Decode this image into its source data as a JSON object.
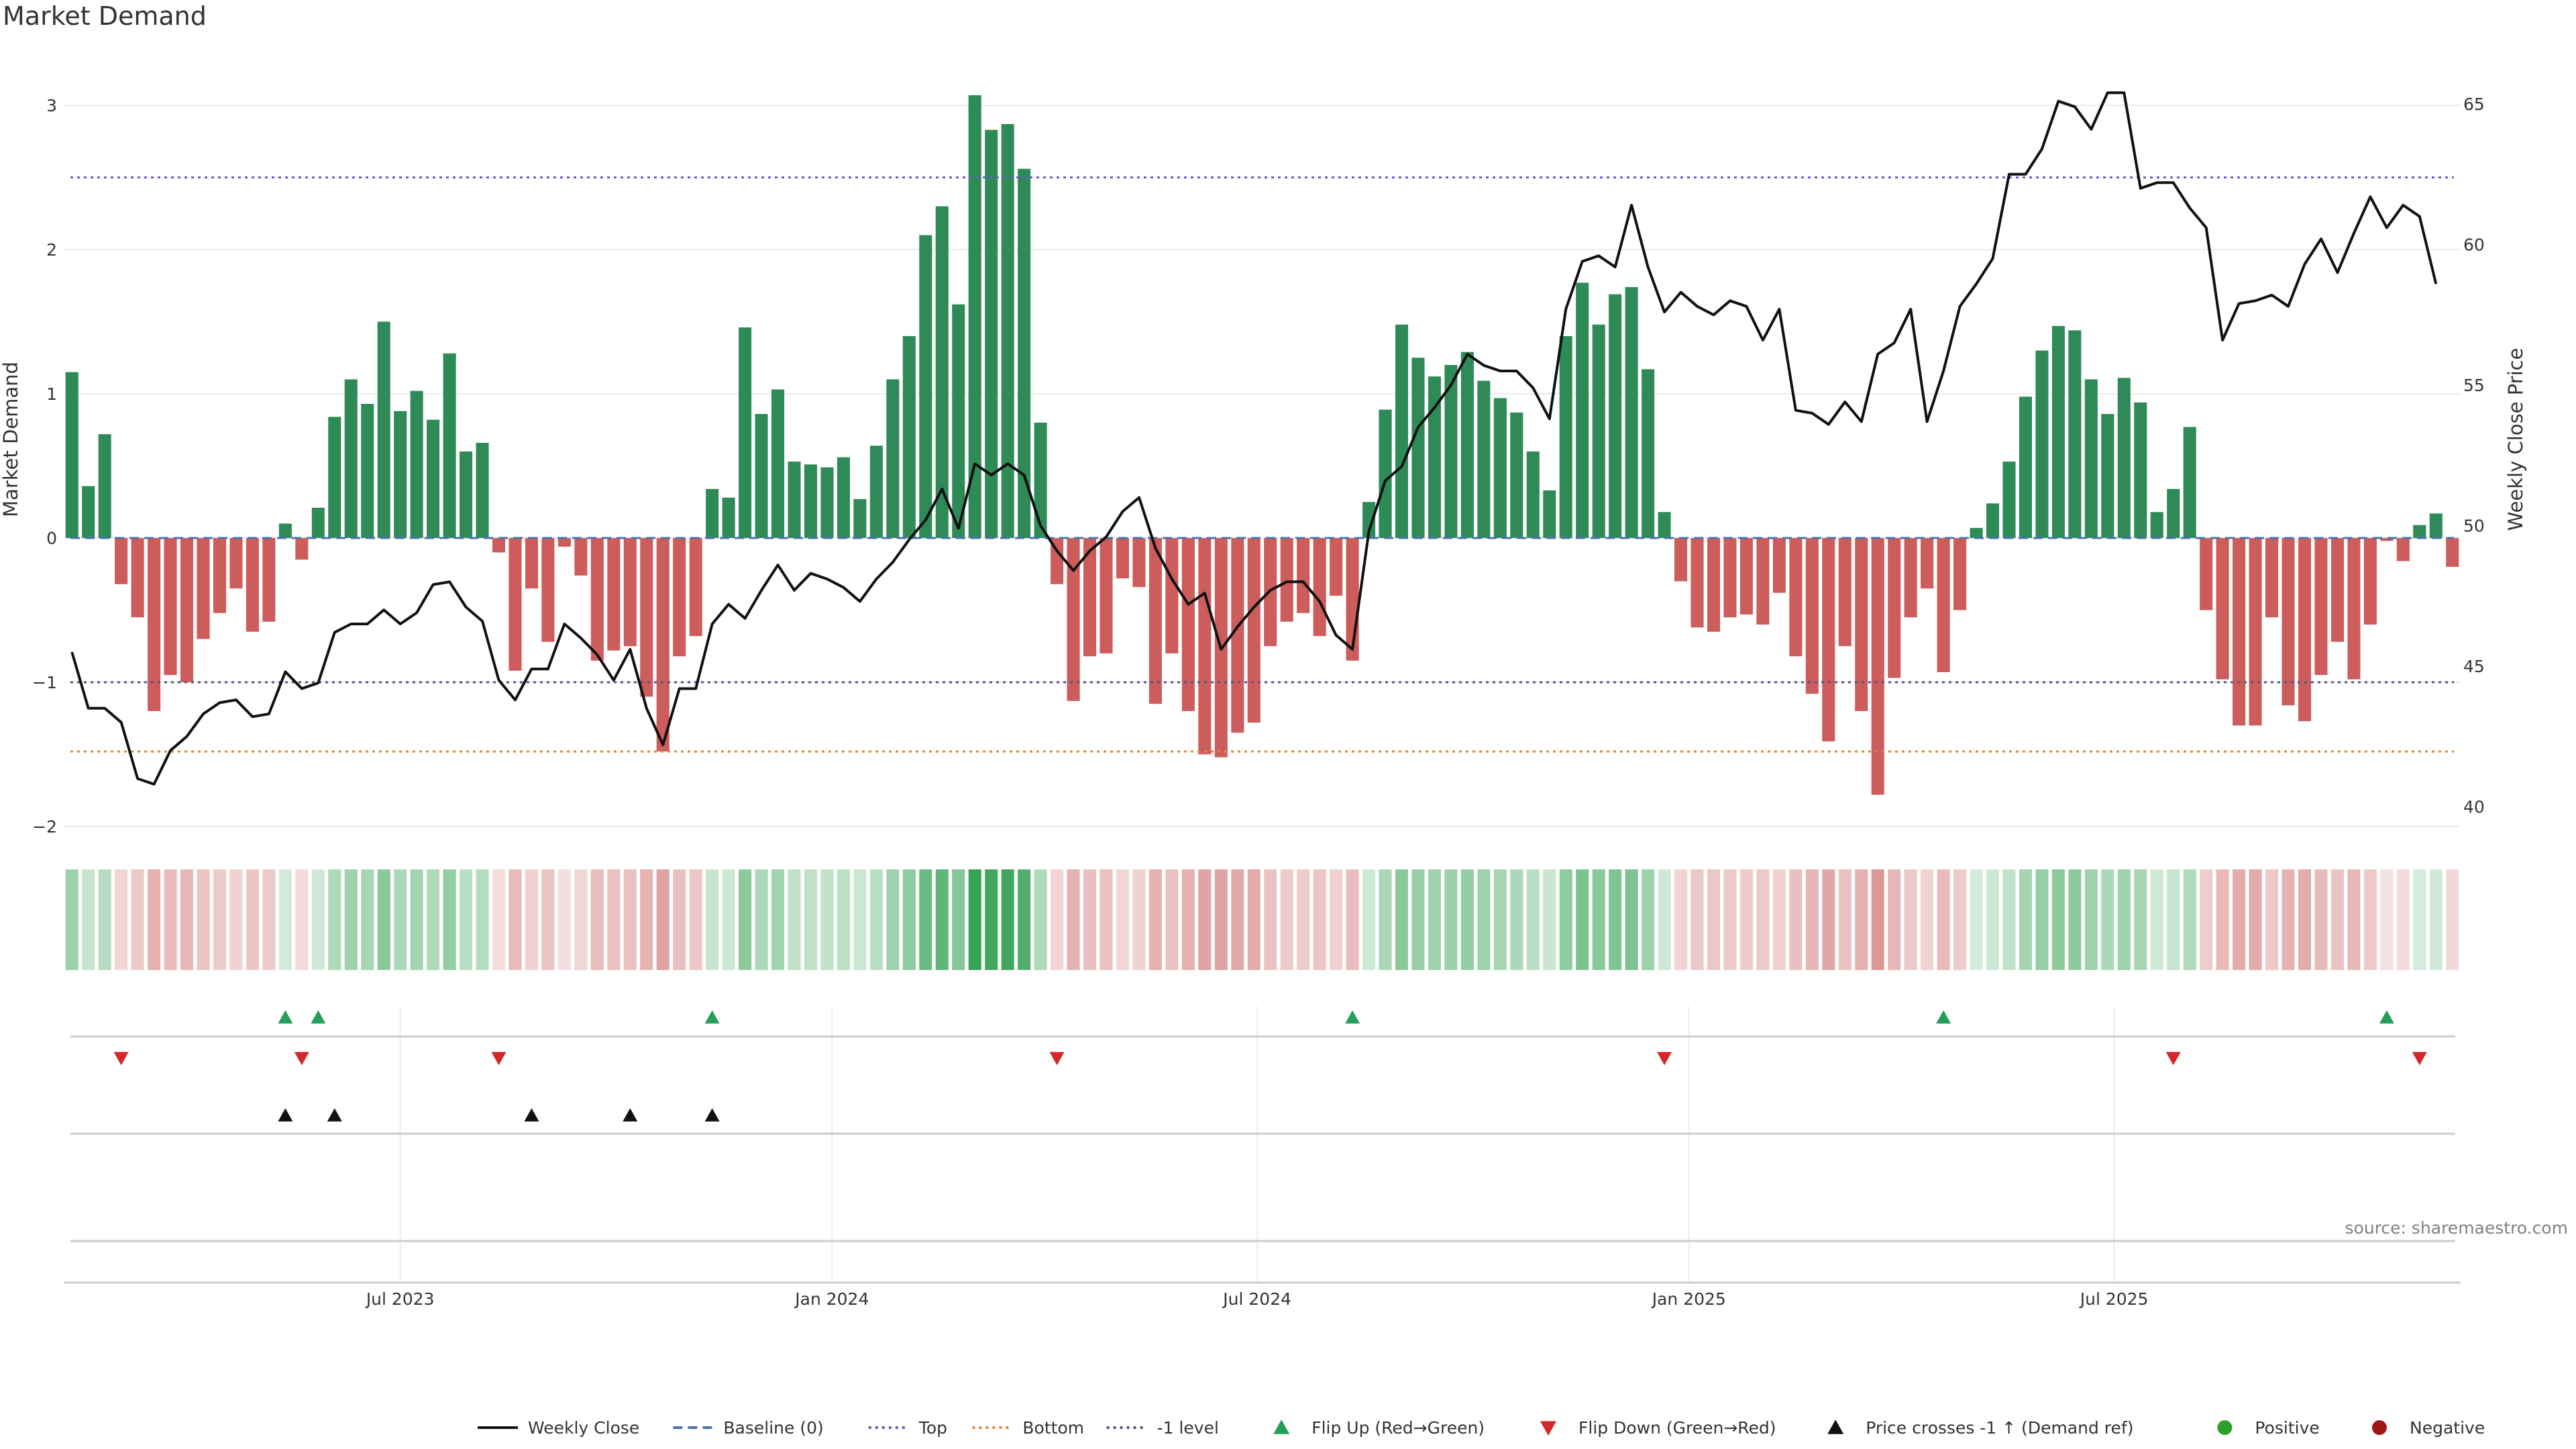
{
  "page": {
    "title": "Market Demand",
    "source": "source: sharemaestro.com"
  },
  "chart_data": {
    "type": "bar",
    "title": "Market Demand",
    "ylabel": "Market Demand",
    "y2label": "Weekly Close Price",
    "ylim": [
      -2,
      3.3
    ],
    "y2lim": [
      40,
      66
    ],
    "yticks": [
      -2,
      -1,
      0,
      1,
      2,
      3
    ],
    "yticklabels": [
      "−2",
      "−1",
      "0",
      "1",
      "2",
      "3"
    ],
    "y2ticks": [
      40,
      45,
      50,
      55,
      60,
      65
    ],
    "reference_lines": [
      {
        "name": "Baseline (0)",
        "value": 0,
        "style": "dashed",
        "color": "#4c72b0"
      },
      {
        "name": "Top",
        "value": 2.5,
        "style": "dotted",
        "color": "#6a5acd"
      },
      {
        "name": "Bottom",
        "value": -1.48,
        "style": "dotted",
        "color": "#dd8833"
      },
      {
        "name": "-1 level",
        "value": -1,
        "style": "dotted",
        "color": "#555577"
      }
    ],
    "x_ticks": [
      {
        "label": "Jul 2023",
        "index": 20.5
      },
      {
        "label": "Jan 2024",
        "index": 46.8
      },
      {
        "label": "Jul 2024",
        "index": 72.7
      },
      {
        "label": "Jan 2025",
        "index": 99.0
      },
      {
        "label": "Jul 2025",
        "index": 124.9
      }
    ],
    "series": [
      {
        "name": "Market Demand",
        "values": [
          1.15,
          0.36,
          0.72,
          -0.32,
          -0.55,
          -1.2,
          -0.95,
          -1.0,
          -0.7,
          -0.52,
          -0.35,
          -0.65,
          -0.58,
          0.1,
          -0.15,
          0.21,
          0.84,
          1.1,
          0.93,
          1.5,
          0.88,
          1.02,
          0.82,
          1.28,
          0.6,
          0.66,
          -0.1,
          -0.92,
          -0.35,
          -0.72,
          -0.06,
          -0.26,
          -0.85,
          -0.78,
          -0.75,
          -1.1,
          -1.48,
          -0.82,
          -0.68,
          0.34,
          0.28,
          1.46,
          0.86,
          1.03,
          0.53,
          0.51,
          0.49,
          0.56,
          0.27,
          0.64,
          1.1,
          1.4,
          2.1,
          2.3,
          1.62,
          3.07,
          2.83,
          2.87,
          2.56,
          0.8,
          -0.32,
          -1.13,
          -0.82,
          -0.8,
          -0.28,
          -0.34,
          -1.15,
          -0.8,
          -1.2,
          -1.5,
          -1.52,
          -1.35,
          -1.28,
          -0.75,
          -0.58,
          -0.52,
          -0.68,
          -0.4,
          -0.85,
          0.25,
          0.89,
          1.48,
          1.25,
          1.12,
          1.2,
          1.29,
          1.09,
          0.97,
          0.87,
          0.6,
          0.33,
          1.4,
          1.77,
          1.48,
          1.69,
          1.74,
          1.17,
          0.18,
          -0.3,
          -0.62,
          -0.65,
          -0.55,
          -0.53,
          -0.6,
          -0.38,
          -0.82,
          -1.08,
          -1.41,
          -0.75,
          -1.2,
          -1.78,
          -0.97,
          -0.55,
          -0.35,
          -0.93,
          -0.5,
          0.07,
          0.24,
          0.53,
          0.98,
          1.3,
          1.47,
          1.44,
          1.1,
          0.86,
          1.11,
          0.94,
          0.18,
          0.34,
          0.77,
          -0.5,
          -0.98,
          -1.3,
          -1.3,
          -0.55,
          -1.16,
          -1.27,
          -0.95,
          -0.72,
          -0.98,
          -0.6,
          -0.02,
          -0.16,
          0.09,
          0.17,
          -0.2
        ]
      },
      {
        "name": "Weekly Close",
        "values": [
          45.5,
          43.5,
          43.5,
          43.0,
          41.0,
          40.8,
          42.0,
          42.5,
          43.3,
          43.7,
          43.8,
          43.2,
          43.3,
          44.8,
          44.2,
          44.4,
          46.2,
          46.5,
          46.5,
          47.0,
          46.5,
          46.9,
          47.9,
          48.0,
          47.1,
          46.6,
          44.5,
          43.8,
          44.9,
          44.9,
          46.5,
          46.0,
          45.4,
          44.5,
          45.6,
          43.5,
          42.2,
          44.2,
          44.2,
          46.5,
          47.2,
          46.7,
          47.7,
          48.6,
          47.7,
          48.3,
          48.1,
          47.8,
          47.3,
          48.1,
          48.7,
          49.5,
          50.2,
          51.3,
          49.9,
          52.2,
          51.8,
          52.2,
          51.8,
          50.0,
          49.1,
          48.4,
          49.1,
          49.6,
          50.5,
          51.0,
          49.2,
          48.1,
          47.2,
          47.6,
          45.6,
          46.4,
          47.1,
          47.7,
          48.0,
          48.0,
          47.3,
          46.1,
          45.6,
          49.8,
          51.6,
          52.1,
          53.5,
          54.2,
          55.0,
          56.1,
          55.7,
          55.5,
          55.5,
          54.9,
          53.8,
          57.7,
          59.4,
          59.6,
          59.2,
          61.4,
          59.2,
          57.6,
          58.3,
          57.8,
          57.5,
          58.0,
          57.8,
          56.6,
          57.7,
          54.1,
          54.0,
          53.6,
          54.4,
          53.7,
          56.1,
          56.5,
          57.7,
          53.7,
          55.5,
          57.8,
          58.6,
          59.5,
          62.5,
          62.5,
          63.4,
          65.1,
          64.9,
          64.1,
          65.4,
          65.4,
          62.0,
          62.2,
          62.2,
          61.3,
          60.6,
          56.6,
          57.9,
          58.0,
          58.2,
          57.8,
          59.3,
          60.2,
          59.0,
          60.4,
          61.7,
          60.6,
          61.4,
          61.0,
          58.6
        ]
      }
    ],
    "flip_up": [
      13,
      15,
      39,
      78,
      114,
      141
    ],
    "flip_down": [
      3,
      14,
      26,
      60,
      97,
      128,
      143
    ],
    "price_crosses": [
      13,
      16,
      28,
      34,
      39
    ],
    "legend": [
      {
        "label": "Weekly Close",
        "symbol": "line",
        "color": "#111111"
      },
      {
        "label": "Baseline (0)",
        "symbol": "dash",
        "color": "#4c72b0"
      },
      {
        "label": "Top",
        "symbol": "dot",
        "color": "#6a5acd"
      },
      {
        "label": "Bottom",
        "symbol": "dot",
        "color": "#dd8833"
      },
      {
        "label": "-1 level",
        "symbol": "dot",
        "color": "#555577"
      },
      {
        "label": "Flip Up (Red→Green)",
        "symbol": "tri-up",
        "color": "#22a05a"
      },
      {
        "label": "Flip Down (Green→Red)",
        "symbol": "tri-down",
        "color": "#d62728"
      },
      {
        "label": "Price crosses -1 ↑ (Demand ref)",
        "symbol": "tri-up",
        "color": "#111111"
      },
      {
        "label": "Positive",
        "symbol": "circle",
        "color": "#2ca02c"
      },
      {
        "label": "Negative",
        "symbol": "circle",
        "color": "#a31515"
      }
    ],
    "colors": {
      "positive_bar": "#2e8b57",
      "negative_bar": "#cd5c5c",
      "strip_positive": "#2e9e4f",
      "strip_negative": "#c85a5a",
      "price_line": "#111111",
      "grid": "#ececec"
    }
  }
}
